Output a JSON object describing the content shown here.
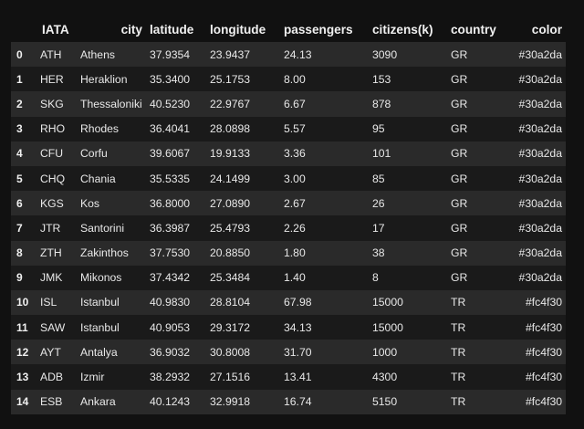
{
  "table": {
    "headers": {
      "iata": "IATA",
      "city": "city",
      "latitude": "latitude",
      "longitude": "longitude",
      "passengers": "passengers",
      "citizens": "citizens(k)",
      "country": "country",
      "color": "color"
    },
    "rows": [
      {
        "index": "0",
        "iata": "ATH",
        "city": "Athens",
        "latitude": "37.9354",
        "longitude": "23.9437",
        "passengers": "24.13",
        "citizens": "3090",
        "country": "GR",
        "color": "#30a2da"
      },
      {
        "index": "1",
        "iata": "HER",
        "city": "Heraklion",
        "latitude": "35.3400",
        "longitude": "25.1753",
        "passengers": "8.00",
        "citizens": "153",
        "country": "GR",
        "color": "#30a2da"
      },
      {
        "index": "2",
        "iata": "SKG",
        "city": "Thessaloniki",
        "latitude": "40.5230",
        "longitude": "22.9767",
        "passengers": "6.67",
        "citizens": "878",
        "country": "GR",
        "color": "#30a2da"
      },
      {
        "index": "3",
        "iata": "RHO",
        "city": "Rhodes",
        "latitude": "36.4041",
        "longitude": "28.0898",
        "passengers": "5.57",
        "citizens": "95",
        "country": "GR",
        "color": "#30a2da"
      },
      {
        "index": "4",
        "iata": "CFU",
        "city": "Corfu",
        "latitude": "39.6067",
        "longitude": "19.9133",
        "passengers": "3.36",
        "citizens": "101",
        "country": "GR",
        "color": "#30a2da"
      },
      {
        "index": "5",
        "iata": "CHQ",
        "city": "Chania",
        "latitude": "35.5335",
        "longitude": "24.1499",
        "passengers": "3.00",
        "citizens": "85",
        "country": "GR",
        "color": "#30a2da"
      },
      {
        "index": "6",
        "iata": "KGS",
        "city": "Kos",
        "latitude": "36.8000",
        "longitude": "27.0890",
        "passengers": "2.67",
        "citizens": "26",
        "country": "GR",
        "color": "#30a2da"
      },
      {
        "index": "7",
        "iata": "JTR",
        "city": "Santorini",
        "latitude": "36.3987",
        "longitude": "25.4793",
        "passengers": "2.26",
        "citizens": "17",
        "country": "GR",
        "color": "#30a2da"
      },
      {
        "index": "8",
        "iata": "ZTH",
        "city": "Zakinthos",
        "latitude": "37.7530",
        "longitude": "20.8850",
        "passengers": "1.80",
        "citizens": "38",
        "country": "GR",
        "color": "#30a2da"
      },
      {
        "index": "9",
        "iata": "JMK",
        "city": "Mikonos",
        "latitude": "37.4342",
        "longitude": "25.3484",
        "passengers": "1.40",
        "citizens": "8",
        "country": "GR",
        "color": "#30a2da"
      },
      {
        "index": "10",
        "iata": "ISL",
        "city": "Istanbul",
        "latitude": "40.9830",
        "longitude": "28.8104",
        "passengers": "67.98",
        "citizens": "15000",
        "country": "TR",
        "color": "#fc4f30"
      },
      {
        "index": "11",
        "iata": "SAW",
        "city": "Istanbul",
        "latitude": "40.9053",
        "longitude": "29.3172",
        "passengers": "34.13",
        "citizens": "15000",
        "country": "TR",
        "color": "#fc4f30"
      },
      {
        "index": "12",
        "iata": "AYT",
        "city": "Antalya",
        "latitude": "36.9032",
        "longitude": "30.8008",
        "passengers": "31.70",
        "citizens": "1000",
        "country": "TR",
        "color": "#fc4f30"
      },
      {
        "index": "13",
        "iata": "ADB",
        "city": "Izmir",
        "latitude": "38.2932",
        "longitude": "27.1516",
        "passengers": "13.41",
        "citizens": "4300",
        "country": "TR",
        "color": "#fc4f30"
      },
      {
        "index": "14",
        "iata": "ESB",
        "city": "Ankara",
        "latitude": "40.1243",
        "longitude": "32.9918",
        "passengers": "16.74",
        "citizens": "5150",
        "country": "TR",
        "color": "#fc4f30"
      }
    ]
  }
}
